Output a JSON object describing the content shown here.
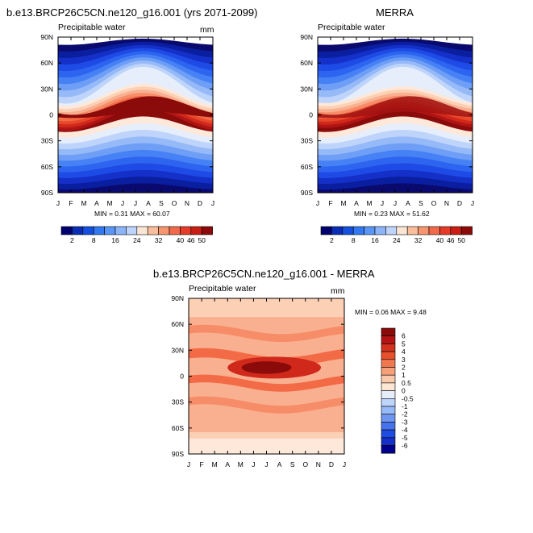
{
  "colors": {
    "full_palette": [
      "#0a0a6e",
      "#0a1ea0",
      "#1430c8",
      "#1e4be6",
      "#2d64f0",
      "#4682f5",
      "#6e9ef5",
      "#96b9f8",
      "#bed4fa",
      "#e6eefc",
      "#fde8da",
      "#fcd0b4",
      "#f9b090",
      "#f68c68",
      "#f26a46",
      "#e8472a",
      "#d0281a",
      "#b01414",
      "#8b0a0a"
    ],
    "legend_top": [
      "#00006e",
      "#0a2db4",
      "#1450dc",
      "#3278f0",
      "#5a96f5",
      "#8cb4f8",
      "#bed4fa",
      "#fbe6d6",
      "#f9be9c",
      "#f5966e",
      "#f0694a",
      "#e43c28",
      "#c81e14",
      "#8c0a0a"
    ],
    "legend_diff": [
      "#8c0a0a",
      "#b41414",
      "#d2321e",
      "#e6502d",
      "#f07850",
      "#f5a078",
      "#fac8aa",
      "#fde6d2",
      "#e6eefc",
      "#bed4fa",
      "#96b9f8",
      "#6e96f0",
      "#4673eb",
      "#1e4be1",
      "#1430c8",
      "#00008c"
    ]
  },
  "panels": {
    "left": {
      "title": "b.e13.BRCP26C5CN.ne120_g16.001 (yrs 2071-2099)",
      "subtitle": "Precipitable water",
      "units": "mm",
      "minmax": "MIN =   0.31 MAX =  60.07"
    },
    "right": {
      "title": "MERRA",
      "subtitle": "Precipitable water",
      "minmax": "MIN =   0.23 MAX =  51.62"
    },
    "diff": {
      "title": "b.e13.BRCP26C5CN.ne120_g16.001 - MERRA",
      "subtitle": "Precipitable water",
      "units": "mm",
      "minmax": "MIN =   0.06 MAX =   9.48"
    }
  },
  "chart_data": [
    {
      "type": "heatmap",
      "title": "b.e13.BRCP26C5CN.ne120_g16.001 (yrs 2071-2099)",
      "subtitle": "Precipitable water",
      "units": "mm",
      "x": [
        "J",
        "F",
        "M",
        "A",
        "M",
        "J",
        "J",
        "A",
        "S",
        "O",
        "N",
        "D",
        "J"
      ],
      "y_ticks": [
        "90N",
        "60N",
        "30N",
        "0",
        "30S",
        "60S",
        "90S"
      ],
      "ylim": [
        -90,
        90
      ],
      "min": 0.31,
      "max": 60.07,
      "levels": [
        2,
        4,
        8,
        12,
        16,
        20,
        24,
        28,
        32,
        36,
        40,
        44,
        46,
        50
      ],
      "legend_labels": [
        "2",
        "8",
        "16",
        "24",
        "32",
        "40",
        "46",
        "50"
      ]
    },
    {
      "type": "heatmap",
      "title": "MERRA",
      "subtitle": "Precipitable water",
      "x": [
        "J",
        "F",
        "M",
        "A",
        "M",
        "J",
        "J",
        "A",
        "S",
        "O",
        "N",
        "D",
        "J"
      ],
      "y_ticks": [
        "90N",
        "60N",
        "30N",
        "0",
        "30S",
        "60S",
        "90S"
      ],
      "ylim": [
        -90,
        90
      ],
      "min": 0.23,
      "max": 51.62,
      "levels": [
        2,
        4,
        8,
        12,
        16,
        20,
        24,
        28,
        32,
        36,
        40,
        44,
        46,
        50
      ],
      "legend_labels": [
        "2",
        "8",
        "16",
        "24",
        "32",
        "40",
        "46",
        "50"
      ]
    },
    {
      "type": "heatmap",
      "title": "b.e13.BRCP26C5CN.ne120_g16.001 - MERRA",
      "subtitle": "Precipitable water",
      "units": "mm",
      "x": [
        "J",
        "F",
        "M",
        "A",
        "M",
        "J",
        "J",
        "A",
        "S",
        "O",
        "N",
        "D",
        "J"
      ],
      "y_ticks": [
        "90N",
        "60N",
        "30N",
        "0",
        "30S",
        "60S",
        "90S"
      ],
      "ylim": [
        -90,
        90
      ],
      "min": 0.06,
      "max": 9.48,
      "levels": [
        6,
        5,
        4,
        3,
        2,
        1,
        0.5,
        0,
        -0.5,
        -1,
        -2,
        -3,
        -4,
        -5,
        -6
      ],
      "legend_labels": [
        "6",
        "5",
        "4",
        "3",
        "2",
        "1",
        "0.5",
        "0",
        "-0.5",
        "-1",
        "-2",
        "-3",
        "-4",
        "-5",
        "-6"
      ]
    }
  ]
}
